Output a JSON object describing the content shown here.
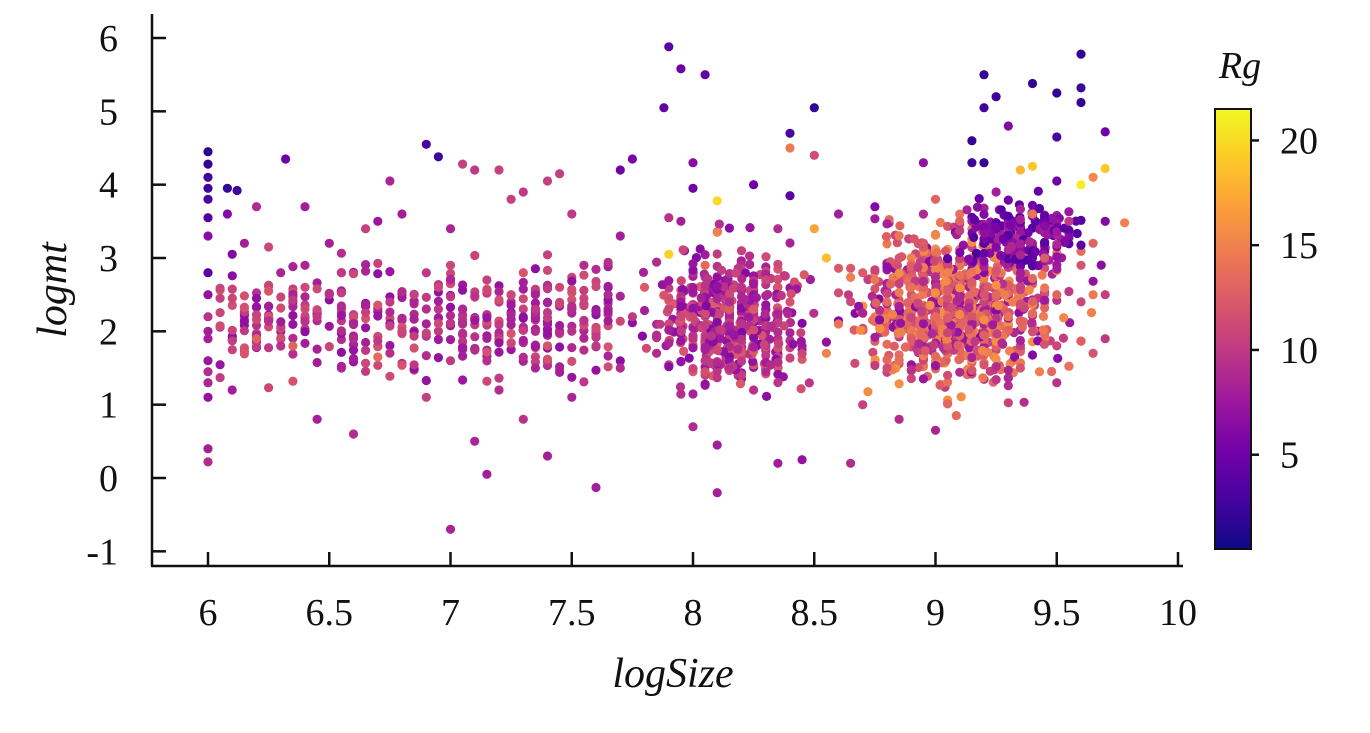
{
  "chart_data": {
    "type": "scatter",
    "title": "",
    "xlabel": "logSize",
    "ylabel": "logmt",
    "xlim": [
      5.75,
      10.0
    ],
    "ylim": [
      -1.2,
      6.3
    ],
    "grid": false,
    "xticks": [
      6,
      6.5,
      7,
      7.5,
      8,
      8.5,
      9,
      9.5,
      10
    ],
    "xtick_labels": [
      "6",
      "6.5",
      "7",
      "7.5",
      "8",
      "8.5",
      "9",
      "9.5",
      "10"
    ],
    "yticks": [
      -1,
      0,
      1,
      2,
      3,
      4,
      5,
      6
    ],
    "ytick_labels": [
      "-1",
      "0",
      "1",
      "2",
      "3",
      "4",
      "5",
      "6"
    ],
    "colorbar": {
      "label": "Rg",
      "range": [
        0.5,
        21.5
      ],
      "ticks": [
        5,
        10,
        15,
        20
      ],
      "tick_labels": [
        "5",
        "10",
        "15",
        "20"
      ],
      "colormap": "plasma",
      "colors": [
        "#0d0887",
        "#46039f",
        "#7201a8",
        "#9c179e",
        "#bd3786",
        "#d8576b",
        "#ed7953",
        "#fb9f3a",
        "#fdca26",
        "#f0f921"
      ]
    },
    "points": [
      [
        6.0,
        4.45,
        1.5
      ],
      [
        6.0,
        4.28,
        2.0
      ],
      [
        6.0,
        4.1,
        3.0
      ],
      [
        6.0,
        3.95,
        2.5
      ],
      [
        6.0,
        3.55,
        3.5
      ],
      [
        6.0,
        3.3,
        6.5
      ],
      [
        6.0,
        2.8,
        4.0
      ],
      [
        6.0,
        2.5,
        7.0
      ],
      [
        6.0,
        2.2,
        9.5
      ],
      [
        6.0,
        1.9,
        8.0
      ],
      [
        6.0,
        1.6,
        7.5
      ],
      [
        6.0,
        1.3,
        8.5
      ],
      [
        6.0,
        1.1,
        7.0
      ],
      [
        6.0,
        0.4,
        8.0
      ],
      [
        6.0,
        0.22,
        9.0
      ],
      [
        6.0,
        3.8,
        3.0
      ],
      [
        6.0,
        2.0,
        8.0
      ],
      [
        6.0,
        1.45,
        9.0
      ],
      [
        6.05,
        2.45,
        10.5
      ],
      [
        6.08,
        3.95,
        2.0
      ],
      [
        6.08,
        3.6,
        6.0
      ],
      [
        6.1,
        3.05,
        6.0
      ],
      [
        6.1,
        1.2,
        8.0
      ],
      [
        6.12,
        3.92,
        2.5
      ],
      [
        6.15,
        3.2,
        8.0
      ],
      [
        6.2,
        3.7,
        9.0
      ],
      [
        6.2,
        1.9,
        13.0
      ],
      [
        6.25,
        3.15,
        11.0
      ],
      [
        6.3,
        2.8,
        8.5
      ],
      [
        6.3,
        1.8,
        9.5
      ],
      [
        6.32,
        4.35,
        5.0
      ],
      [
        6.35,
        1.8,
        13.0
      ],
      [
        6.4,
        3.7,
        8.0
      ],
      [
        6.4,
        2.9,
        8.5
      ],
      [
        6.45,
        2.2,
        10.0
      ],
      [
        6.45,
        0.8,
        8.0
      ],
      [
        6.5,
        2.5,
        9.5
      ],
      [
        6.5,
        3.2,
        8.0
      ],
      [
        6.55,
        1.5,
        8.5
      ],
      [
        6.55,
        2.8,
        10.0
      ],
      [
        6.6,
        0.6,
        9.0
      ],
      [
        6.6,
        1.9,
        9.0
      ],
      [
        6.65,
        3.4,
        10.5
      ],
      [
        6.7,
        1.65,
        13.5
      ],
      [
        6.7,
        3.5,
        7.5
      ],
      [
        6.75,
        4.05,
        8.5
      ],
      [
        6.75,
        2.4,
        10.0
      ],
      [
        6.8,
        3.6,
        8.0
      ],
      [
        6.8,
        2.0,
        11.0
      ],
      [
        6.85,
        2.5,
        10.5
      ],
      [
        6.9,
        4.55,
        3.0
      ],
      [
        6.9,
        1.1,
        10.5
      ],
      [
        6.9,
        2.8,
        10.0
      ],
      [
        6.95,
        4.38,
        2.5
      ],
      [
        6.95,
        2.6,
        11.0
      ],
      [
        7.0,
        3.4,
        8.5
      ],
      [
        7.0,
        1.6,
        10.0
      ],
      [
        7.0,
        -0.7,
        8.5
      ],
      [
        7.0,
        2.9,
        11.0
      ],
      [
        7.05,
        4.28,
        10.5
      ],
      [
        7.05,
        2.1,
        9.0
      ],
      [
        7.1,
        4.2,
        10.0
      ],
      [
        7.1,
        0.5,
        8.5
      ],
      [
        7.15,
        2.7,
        10.5
      ],
      [
        7.15,
        0.05,
        8.0
      ],
      [
        7.2,
        4.2,
        10.5
      ],
      [
        7.2,
        1.2,
        9.0
      ],
      [
        7.25,
        3.8,
        10.5
      ],
      [
        7.25,
        2.5,
        11.0
      ],
      [
        7.3,
        3.9,
        10.0
      ],
      [
        7.3,
        2.8,
        12.0
      ],
      [
        7.3,
        0.8,
        9.5
      ],
      [
        7.35,
        2.3,
        10.0
      ],
      [
        7.35,
        1.5,
        8.5
      ],
      [
        7.4,
        4.05,
        10.5
      ],
      [
        7.4,
        0.3,
        8.0
      ],
      [
        7.45,
        4.15,
        10.5
      ],
      [
        7.45,
        2.6,
        11.0
      ],
      [
        7.5,
        3.6,
        10.0
      ],
      [
        7.5,
        1.1,
        8.5
      ],
      [
        7.5,
        2.0,
        9.5
      ],
      [
        7.55,
        2.9,
        9.0
      ],
      [
        7.6,
        1.8,
        10.0
      ],
      [
        7.6,
        -0.13,
        8.0
      ],
      [
        7.65,
        2.5,
        9.0
      ],
      [
        7.7,
        4.2,
        5.0
      ],
      [
        7.7,
        3.3,
        8.0
      ],
      [
        7.7,
        1.5,
        9.0
      ],
      [
        7.75,
        4.35,
        5.5
      ],
      [
        7.75,
        2.2,
        10.0
      ],
      [
        7.8,
        2.6,
        12.5
      ],
      [
        7.85,
        1.7,
        9.0
      ],
      [
        7.88,
        5.05,
        4.5
      ],
      [
        7.9,
        5.88,
        4.0
      ],
      [
        7.9,
        3.05,
        19.5
      ],
      [
        7.9,
        3.55,
        9.5
      ],
      [
        7.95,
        5.58,
        5.0
      ],
      [
        7.95,
        3.5,
        8.0
      ],
      [
        8.0,
        4.3,
        6.5
      ],
      [
        8.0,
        3.95,
        5.0
      ],
      [
        8.0,
        2.2,
        11.0
      ],
      [
        8.0,
        0.7,
        9.0
      ],
      [
        8.05,
        5.5,
        4.5
      ],
      [
        8.05,
        2.9,
        13.5
      ],
      [
        8.1,
        3.78,
        20.0
      ],
      [
        8.1,
        3.35,
        15.0
      ],
      [
        8.1,
        -0.2,
        8.0
      ],
      [
        8.1,
        0.45,
        8.0
      ],
      [
        8.15,
        2.4,
        9.0
      ],
      [
        8.2,
        3.1,
        10.5
      ],
      [
        8.25,
        4.0,
        5.0
      ],
      [
        8.25,
        1.2,
        9.5
      ],
      [
        8.3,
        2.7,
        11.0
      ],
      [
        8.35,
        3.4,
        9.0
      ],
      [
        8.35,
        0.2,
        8.0
      ],
      [
        8.4,
        4.7,
        3.0
      ],
      [
        8.4,
        4.5,
        14.5
      ],
      [
        8.4,
        3.85,
        4.0
      ],
      [
        8.45,
        0.25,
        7.0
      ],
      [
        8.5,
        5.05,
        2.0
      ],
      [
        8.5,
        4.4,
        11.5
      ],
      [
        8.5,
        3.4,
        17.0
      ],
      [
        8.55,
        3.0,
        18.5
      ],
      [
        8.55,
        1.7,
        15.0
      ],
      [
        8.6,
        3.6,
        8.0
      ],
      [
        8.6,
        2.1,
        14.0
      ],
      [
        8.65,
        0.2,
        9.0
      ],
      [
        8.7,
        2.8,
        12.5
      ],
      [
        8.7,
        1.0,
        10.5
      ],
      [
        8.75,
        3.7,
        6.0
      ],
      [
        8.8,
        2.4,
        13.5
      ],
      [
        8.8,
        1.5,
        11.5
      ],
      [
        8.85,
        3.0,
        12.0
      ],
      [
        8.85,
        0.8,
        9.0
      ],
      [
        8.9,
        2.6,
        14.0
      ],
      [
        8.9,
        1.9,
        12.5
      ],
      [
        8.95,
        4.3,
        7.0
      ],
      [
        8.95,
        3.2,
        12.5
      ],
      [
        9.0,
        3.8,
        13.0
      ],
      [
        9.0,
        2.2,
        13.5
      ],
      [
        9.0,
        0.65,
        8.5
      ],
      [
        9.05,
        2.8,
        15.0
      ],
      [
        9.05,
        1.4,
        11.5
      ],
      [
        9.1,
        3.5,
        13.0
      ],
      [
        9.15,
        4.3,
        2.5
      ],
      [
        9.15,
        4.6,
        2.0
      ],
      [
        9.2,
        5.5,
        2.0
      ],
      [
        9.2,
        5.05,
        2.5
      ],
      [
        9.2,
        4.3,
        2.0
      ],
      [
        9.2,
        2.5,
        12.0
      ],
      [
        9.25,
        5.2,
        2.5
      ],
      [
        9.25,
        3.9,
        8.0
      ],
      [
        9.3,
        4.8,
        6.0
      ],
      [
        9.3,
        2.2,
        14.0
      ],
      [
        9.35,
        4.2,
        18.0
      ],
      [
        9.35,
        1.5,
        12.0
      ],
      [
        9.4,
        5.38,
        2.0
      ],
      [
        9.4,
        4.25,
        19.0
      ],
      [
        9.4,
        3.6,
        14.0
      ],
      [
        9.45,
        3.0,
        12.5
      ],
      [
        9.5,
        5.25,
        2.0
      ],
      [
        9.5,
        4.65,
        3.0
      ],
      [
        9.5,
        4.05,
        5.0
      ],
      [
        9.5,
        2.5,
        13.0
      ],
      [
        9.5,
        1.3,
        9.5
      ],
      [
        9.55,
        3.5,
        10.0
      ],
      [
        9.6,
        5.78,
        2.0
      ],
      [
        9.6,
        5.32,
        2.5
      ],
      [
        9.6,
        5.12,
        2.0
      ],
      [
        9.6,
        4.0,
        21.0
      ],
      [
        9.6,
        2.9,
        12.0
      ],
      [
        9.65,
        4.1,
        15.5
      ],
      [
        9.65,
        3.2,
        13.0
      ],
      [
        9.7,
        4.72,
        5.0
      ],
      [
        9.7,
        4.22,
        19.0
      ],
      [
        9.7,
        3.5,
        6.0
      ],
      [
        9.7,
        2.5,
        10.5
      ],
      [
        9.7,
        1.9,
        10.0
      ],
      [
        9.78,
        3.48,
        15.0
      ],
      [
        9.65,
        2.5,
        14.5
      ]
    ],
    "clusters": [
      {
        "x": [
          6.05,
          7.7
        ],
        "y": [
          1.0,
          3.3
        ],
        "count": 420,
        "rg": [
          6.5,
          12.0
        ]
      },
      {
        "x": [
          7.7,
          8.6
        ],
        "y": [
          0.8,
          3.5
        ],
        "count": 520,
        "rg": [
          6.0,
          12.5
        ]
      },
      {
        "x": [
          8.5,
          9.7
        ],
        "y": [
          0.8,
          3.9
        ],
        "count": 1000,
        "rg": [
          6.0,
          16.0
        ]
      },
      {
        "x": [
          9.0,
          9.7
        ],
        "y": [
          2.6,
          4.0
        ],
        "count": 200,
        "rg": [
          3.0,
          9.0
        ]
      }
    ]
  }
}
